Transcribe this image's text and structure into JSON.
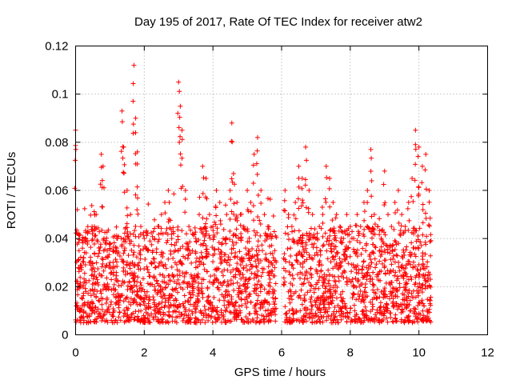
{
  "chart_data": {
    "type": "scatter",
    "title": "Day 195 of 2017, Rate Of TEC Index for receiver atw2",
    "xlabel": "GPS time / hours",
    "ylabel": "ROTI / TECUs",
    "xlim": [
      0,
      12
    ],
    "ylim": [
      0,
      0.12
    ],
    "x_ticks": [
      0,
      2,
      4,
      6,
      8,
      10,
      12
    ],
    "x_tick_labels": [
      "0",
      "2",
      "4",
      "6",
      "8",
      "10",
      "12"
    ],
    "y_ticks": [
      0,
      0.02,
      0.04,
      0.06,
      0.08,
      0.1,
      0.12
    ],
    "y_tick_labels": [
      "0",
      "0.02",
      "0.04",
      "0.06",
      "0.08",
      "0.1",
      "0.12"
    ],
    "grid": true,
    "marker": "+",
    "color": "#ff0000",
    "series": [
      {
        "name": "ROTI",
        "x": [
          0.0,
          0.05,
          0.1,
          0.15,
          0.2,
          0.3,
          0.4,
          0.5,
          0.6,
          0.7,
          0.75,
          0.8,
          0.9,
          1.0,
          1.1,
          1.2,
          1.35,
          1.4,
          1.5,
          1.6,
          1.7,
          1.75,
          1.8,
          1.9,
          2.0,
          2.1,
          2.2,
          2.3,
          2.4,
          2.5,
          2.6,
          2.7,
          2.8,
          2.9,
          3.0,
          3.05,
          3.1,
          3.2,
          3.3,
          3.4,
          3.5,
          3.6,
          3.7,
          3.8,
          3.9,
          4.0,
          4.1,
          4.2,
          4.3,
          4.4,
          4.5,
          4.55,
          4.6,
          4.7,
          4.8,
          4.9,
          5.0,
          5.1,
          5.2,
          5.3,
          5.4,
          5.5,
          5.6,
          5.7,
          5.8,
          6.1,
          6.2,
          6.3,
          6.4,
          6.5,
          6.6,
          6.7,
          6.8,
          6.9,
          7.0,
          7.1,
          7.2,
          7.3,
          7.4,
          7.5,
          7.6,
          7.7,
          7.8,
          7.9,
          8.0,
          8.1,
          8.2,
          8.3,
          8.4,
          8.5,
          8.6,
          8.7,
          8.8,
          8.9,
          9.0,
          9.1,
          9.2,
          9.3,
          9.4,
          9.5,
          9.6,
          9.7,
          9.8,
          9.9,
          10.0,
          10.1,
          10.2,
          10.3
        ],
        "y": [
          0.085,
          0.052,
          0.035,
          0.02,
          0.015,
          0.018,
          0.03,
          0.025,
          0.05,
          0.035,
          0.075,
          0.07,
          0.02,
          0.03,
          0.025,
          0.04,
          0.093,
          0.078,
          0.06,
          0.05,
          0.112,
          0.09,
          0.076,
          0.045,
          0.04,
          0.035,
          0.03,
          0.04,
          0.045,
          0.05,
          0.055,
          0.06,
          0.04,
          0.03,
          0.105,
          0.095,
          0.085,
          0.06,
          0.045,
          0.035,
          0.04,
          0.05,
          0.07,
          0.065,
          0.05,
          0.045,
          0.06,
          0.055,
          0.04,
          0.05,
          0.06,
          0.088,
          0.067,
          0.055,
          0.05,
          0.045,
          0.06,
          0.055,
          0.075,
          0.082,
          0.06,
          0.05,
          0.045,
          0.04,
          0.035,
          0.06,
          0.05,
          0.045,
          0.055,
          0.07,
          0.065,
          0.078,
          0.06,
          0.05,
          0.04,
          0.045,
          0.05,
          0.07,
          0.065,
          0.055,
          0.05,
          0.045,
          0.04,
          0.05,
          0.045,
          0.04,
          0.05,
          0.045,
          0.055,
          0.06,
          0.077,
          0.05,
          0.045,
          0.04,
          0.068,
          0.05,
          0.045,
          0.055,
          0.06,
          0.05,
          0.045,
          0.055,
          0.065,
          0.085,
          0.078,
          0.07,
          0.075,
          0.06
        ]
      }
    ],
    "data_gaps_hours": [
      [
        5.85,
        6.05
      ]
    ],
    "x_coverage_hours": [
      0.0,
      10.35
    ],
    "typical_range": [
      0.005,
      0.045
    ]
  }
}
